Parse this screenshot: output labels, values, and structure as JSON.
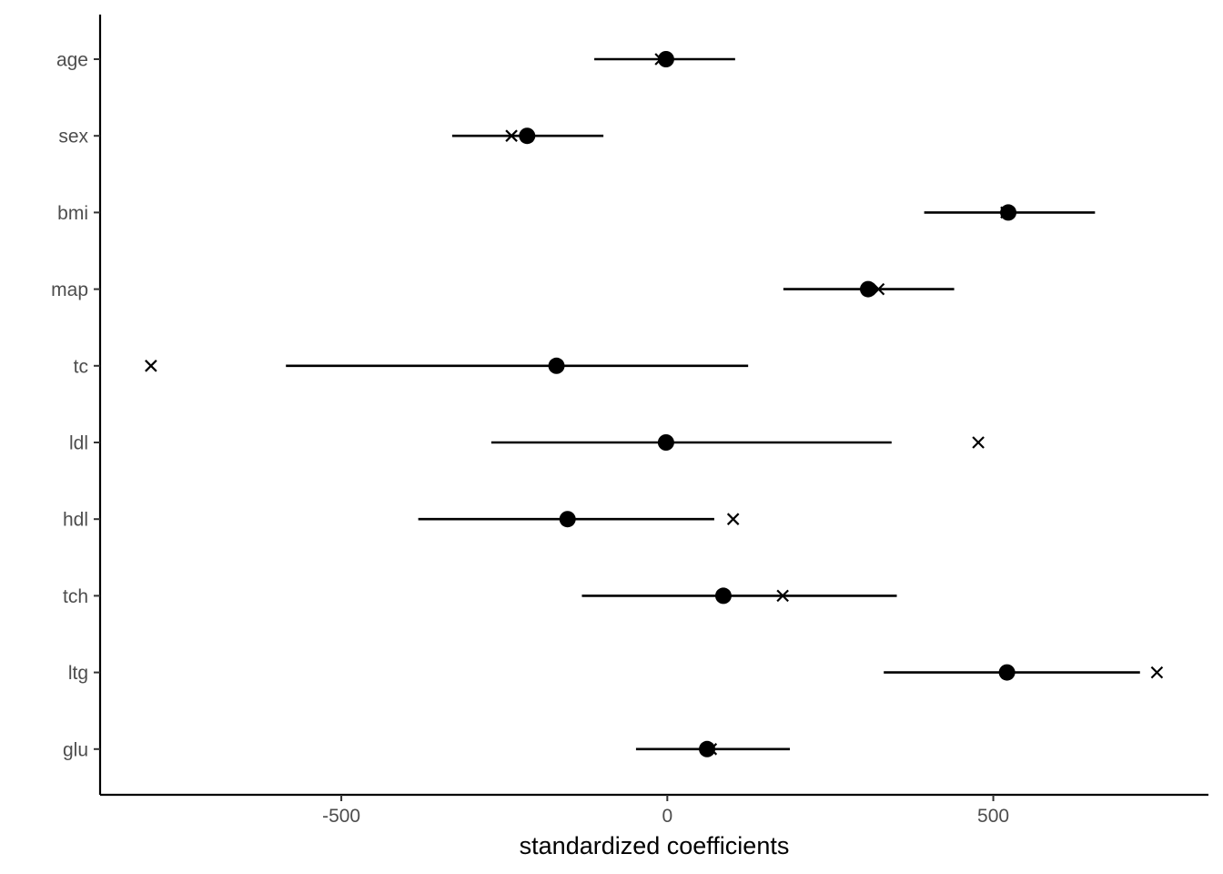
{
  "chart_data": {
    "type": "scatter",
    "title": "",
    "xlabel": "standardized coefficients",
    "ylabel": "",
    "xlim": [
      -870,
      830
    ],
    "x_ticks": [
      -500,
      0,
      500
    ],
    "x_tick_labels": [
      "-500",
      "0",
      "500"
    ],
    "categories": [
      "age",
      "sex",
      "bmi",
      "map",
      "tc",
      "ldl",
      "hdl",
      "tch",
      "ltg",
      "glu"
    ],
    "series": [
      {
        "marker": "filled-circle",
        "values": [
          -2,
          -215,
          523,
          308,
          -170,
          -2,
          -153,
          86,
          521,
          61
        ]
      },
      {
        "marker": "cross",
        "values": [
          -10,
          -239,
          520,
          324,
          -792,
          477,
          101,
          177,
          751,
          67
        ]
      }
    ],
    "intervals": [
      [
        -112,
        104
      ],
      [
        -330,
        -98
      ],
      [
        394,
        656
      ],
      [
        178,
        440
      ],
      [
        -585,
        124
      ],
      [
        -270,
        344
      ],
      [
        -382,
        72
      ],
      [
        -131,
        352
      ],
      [
        332,
        725
      ],
      [
        -48,
        188
      ]
    ],
    "grid": false,
    "legend": "none"
  }
}
